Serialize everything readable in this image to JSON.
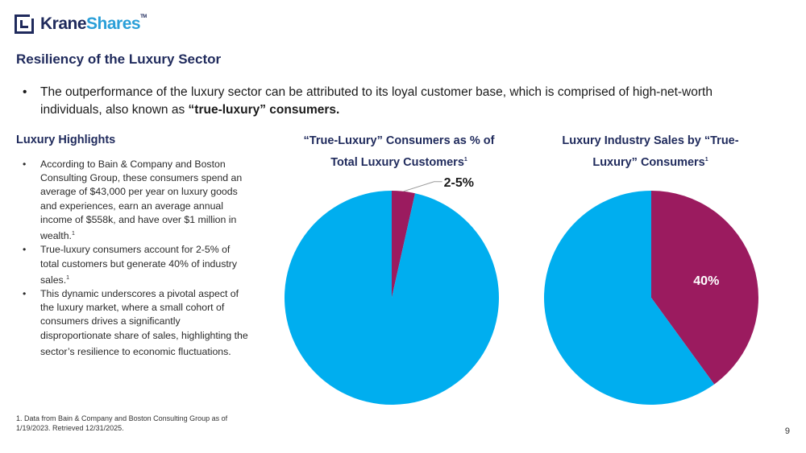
{
  "brand": {
    "name_dark": "Krane",
    "name_blue": "Shares",
    "tm": "TM"
  },
  "page_title": "Resiliency of the Luxury Sector",
  "intro": {
    "bullet": "•",
    "text": "The outperformance of the luxury sector can be attributed to its loyal customer base, which is comprised of high-net-worth individuals, also known as ",
    "emphasis": "“true-luxury” consumers."
  },
  "highlights": {
    "title": "Luxury Highlights",
    "items": [
      {
        "text": "According to Bain & Company and Boston Consulting Group, these consumers spend an average of $43,000 per year on luxury goods and experiences, earn an average annual income of $558k, and have over $1 million in wealth.",
        "sup": "1"
      },
      {
        "text": "True-luxury consumers account for 2-5% of total customers but generate 40% of industry sales.",
        "sup": "1"
      },
      {
        "text": "This dynamic underscores a pivotal aspect of the luxury market, where a small cohort of consumers drives a significantly disproportionate share of sales, highlighting the sector’s resilience to economic fluctuations.",
        "sup": ""
      }
    ]
  },
  "colors": {
    "navy": "#1f2a5c",
    "blue": "#00aeef",
    "magenta": "#9b1b5f"
  },
  "chart_data": [
    {
      "type": "pie",
      "title": "“True-Luxury” Consumers as % of Total Luxury Customers",
      "title_sup": "1",
      "slices": [
        {
          "label": "2-5%",
          "value": 3.5,
          "color": "#9b1b5f"
        },
        {
          "label": "",
          "value": 96.5,
          "color": "#00aeef"
        }
      ]
    },
    {
      "type": "pie",
      "title": "Luxury Industry Sales by “True-Luxury” Consumers",
      "title_sup": "1",
      "slices": [
        {
          "label": "40%",
          "value": 40,
          "color": "#9b1b5f"
        },
        {
          "label": "",
          "value": 60,
          "color": "#00aeef"
        }
      ]
    }
  ],
  "footnote": "1. Data from Bain & Company and Boston Consulting Group as of 1/19/2023. Retrieved 12/31/2025.",
  "page_number": "9"
}
